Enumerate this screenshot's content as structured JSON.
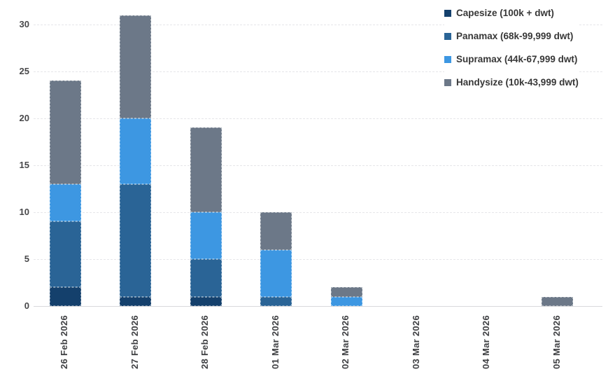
{
  "chart_data": {
    "type": "bar",
    "stacked": true,
    "title": "",
    "xlabel": "",
    "ylabel": "",
    "categories": [
      "26 Feb 2026",
      "27 Feb 2026",
      "28 Feb 2026",
      "01 Mar 2026",
      "02 Mar 2026",
      "03 Mar 2026",
      "04 Mar 2026",
      "05 Mar 2026"
    ],
    "series": [
      {
        "name": "Capesize (100k + dwt)",
        "color": "#14406c",
        "values": [
          2,
          1,
          1,
          0,
          0,
          0,
          0,
          0
        ]
      },
      {
        "name": "Panamax (68k-99,999 dwt)",
        "color": "#2a6496",
        "values": [
          7,
          12,
          4,
          1,
          0,
          0,
          0,
          0
        ]
      },
      {
        "name": "Supramax (44k-67,999 dwt)",
        "color": "#3d97e2",
        "values": [
          4,
          7,
          5,
          5,
          1,
          0,
          0,
          0
        ]
      },
      {
        "name": "Handysize (10k-43,999 dwt)",
        "color": "#6c7888",
        "values": [
          11,
          11,
          9,
          4,
          1,
          0,
          0,
          1
        ]
      }
    ],
    "totals": [
      24,
      31,
      19,
      10,
      2,
      0,
      0,
      1
    ],
    "y_ticks": [
      0,
      5,
      10,
      15,
      20,
      25,
      30
    ],
    "ylim": [
      0,
      32.5
    ],
    "grid": "horizontal-dashed",
    "legend_position": "top-right",
    "x_label_rotation": -90
  }
}
